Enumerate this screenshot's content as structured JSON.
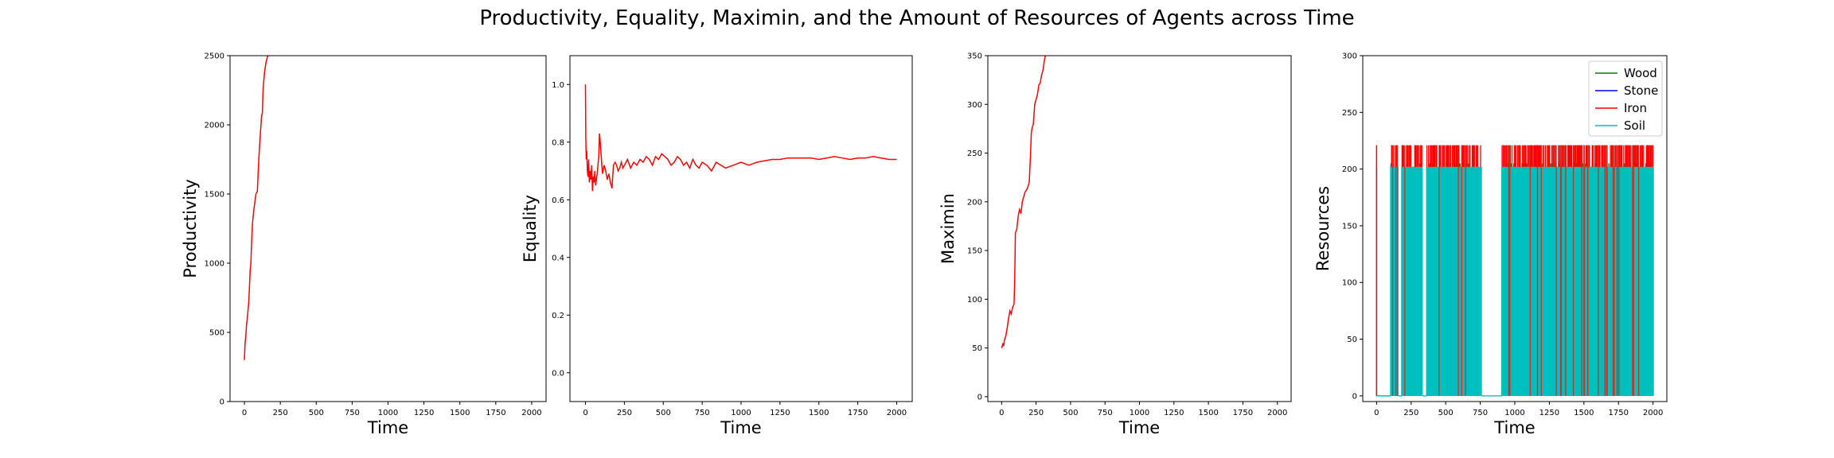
{
  "title": "Productivity, Equality, Maximin, and the Amount of Resources of Agents across Time",
  "chart_data": [
    {
      "type": "line",
      "xlabel": "Time",
      "ylabel": "Productivity",
      "xlim": [
        -100,
        2100
      ],
      "ylim": [
        0,
        2500
      ],
      "xticks": [
        0,
        250,
        500,
        750,
        1000,
        1250,
        1500,
        1750,
        2000
      ],
      "yticks": [
        0,
        500,
        1000,
        1500,
        2000,
        2500
      ],
      "series": [
        {
          "color": "#ff0000",
          "x": [
            0,
            5,
            10,
            15,
            20,
            25,
            30,
            35,
            40,
            45,
            50,
            55,
            60,
            65,
            70,
            80,
            90,
            100,
            110,
            120,
            125,
            130,
            140,
            150,
            160,
            170,
            180,
            190
          ],
          "y": [
            300,
            420,
            480,
            560,
            600,
            660,
            720,
            830,
            950,
            1000,
            1150,
            1270,
            1330,
            1380,
            1420,
            1500,
            1520,
            1750,
            1920,
            2070,
            2080,
            2250,
            2380,
            2450,
            2490,
            2510,
            2520,
            2525
          ]
        }
      ]
    },
    {
      "type": "line",
      "xlabel": "Time",
      "ylabel": "Equality",
      "xlim": [
        -100,
        2100
      ],
      "ylim": [
        -0.1,
        1.1
      ],
      "xticks": [
        0,
        250,
        500,
        750,
        1000,
        1250,
        1500,
        1750,
        2000
      ],
      "yticks": [
        "0.0",
        "0.2",
        "0.4",
        "0.6",
        "0.8",
        "1.0"
      ],
      "series": [
        {
          "color": "#ff0000",
          "x": [
            0,
            2,
            5,
            8,
            12,
            16,
            20,
            25,
            30,
            35,
            40,
            45,
            50,
            55,
            60,
            65,
            70,
            75,
            80,
            85,
            90,
            95,
            100,
            105,
            110,
            120,
            130,
            140,
            150,
            160,
            170,
            180,
            190,
            200,
            210,
            220,
            230,
            240,
            250,
            270,
            290,
            310,
            330,
            350,
            370,
            390,
            410,
            430,
            450,
            470,
            490,
            510,
            530,
            550,
            570,
            590,
            610,
            630,
            650,
            670,
            690,
            710,
            730,
            750,
            780,
            810,
            840,
            870,
            900,
            950,
            1000,
            1050,
            1100,
            1150,
            1200,
            1250,
            1300,
            1350,
            1400,
            1450,
            1500,
            1550,
            1600,
            1650,
            1700,
            1750,
            1800,
            1850,
            1900,
            1950,
            2000
          ],
          "y": [
            1.0,
            0.82,
            0.74,
            0.77,
            0.7,
            0.68,
            0.74,
            0.66,
            0.7,
            0.67,
            0.72,
            0.63,
            0.68,
            0.66,
            0.7,
            0.65,
            0.67,
            0.69,
            0.72,
            0.75,
            0.83,
            0.8,
            0.76,
            0.72,
            0.69,
            0.72,
            0.7,
            0.67,
            0.69,
            0.66,
            0.64,
            0.72,
            0.73,
            0.72,
            0.7,
            0.71,
            0.73,
            0.71,
            0.72,
            0.74,
            0.71,
            0.73,
            0.72,
            0.74,
            0.73,
            0.75,
            0.74,
            0.72,
            0.75,
            0.74,
            0.76,
            0.75,
            0.74,
            0.72,
            0.73,
            0.75,
            0.74,
            0.72,
            0.73,
            0.71,
            0.74,
            0.72,
            0.71,
            0.73,
            0.72,
            0.7,
            0.73,
            0.72,
            0.71,
            0.72,
            0.73,
            0.72,
            0.73,
            0.735,
            0.74,
            0.74,
            0.745,
            0.745,
            0.745,
            0.745,
            0.74,
            0.745,
            0.75,
            0.745,
            0.74,
            0.745,
            0.745,
            0.75,
            0.745,
            0.74,
            0.74
          ]
        }
      ]
    },
    {
      "type": "line",
      "xlabel": "Time",
      "ylabel": "Maximin",
      "xlim": [
        -100,
        2100
      ],
      "ylim": [
        -5,
        350
      ],
      "xticks": [
        0,
        250,
        500,
        750,
        1000,
        1250,
        1500,
        1750,
        2000
      ],
      "yticks": [
        0,
        50,
        100,
        150,
        200,
        250,
        300,
        350
      ],
      "series": [
        {
          "color": "#ff0000",
          "x": [
            0,
            5,
            10,
            15,
            20,
            25,
            30,
            40,
            50,
            60,
            70,
            80,
            90,
            95,
            100,
            105,
            110,
            120,
            130,
            140,
            150,
            160,
            170,
            180,
            190,
            200,
            210,
            215,
            220,
            230,
            240,
            250,
            260,
            270,
            280,
            290,
            300,
            310,
            320
          ],
          "y": [
            50,
            52,
            55,
            52,
            58,
            60,
            62,
            70,
            80,
            88,
            85,
            92,
            95,
            120,
            168,
            170,
            172,
            185,
            192,
            188,
            200,
            205,
            210,
            212,
            215,
            220,
            250,
            270,
            275,
            280,
            300,
            305,
            310,
            320,
            322,
            330,
            335,
            345,
            352
          ]
        }
      ]
    },
    {
      "type": "line",
      "xlabel": "Time",
      "ylabel": "Resources",
      "xlim": [
        -100,
        2100
      ],
      "ylim": [
        -5,
        300
      ],
      "xticks": [
        0,
        250,
        500,
        750,
        1000,
        1250,
        1500,
        1750,
        2000
      ],
      "yticks": [
        0,
        50,
        100,
        150,
        200,
        250,
        300
      ],
      "legend": "top-right",
      "levels": {
        "Iron_high": 221,
        "Wood_mid": 205,
        "Soil_high": 202,
        "zero": 0
      },
      "series": [
        {
          "name": "Wood",
          "color": "#008000"
        },
        {
          "name": "Stone",
          "color": "#0000ff"
        },
        {
          "name": "Iron",
          "color": "#ff0000"
        },
        {
          "name": "Soil",
          "color": "#00bfbf"
        }
      ],
      "gap_intervals": [
        [
          5,
          100
        ],
        [
          155,
          180
        ],
        [
          330,
          360
        ],
        [
          760,
          900
        ],
        [
          880,
          905
        ]
      ]
    }
  ]
}
